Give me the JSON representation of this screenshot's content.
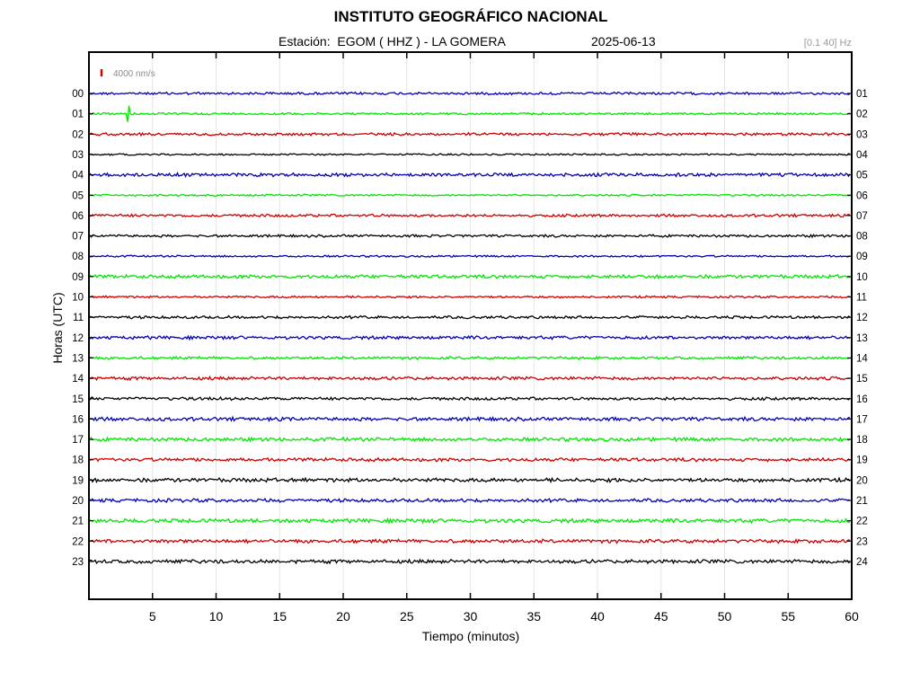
{
  "header": {
    "title": "INSTITUTO GEOGRÁFICO NACIONAL",
    "station": "Estación:  EGOM ( HHZ ) - LA GOMERA",
    "date": "2025-06-13",
    "filter": "[0.1 40] Hz"
  },
  "chart_data": {
    "type": "line",
    "title": "INSTITUTO GEOGRÁFICO NACIONAL",
    "xlabel": "Tiempo (minutos)",
    "ylabel": "Horas (UTC)",
    "xlim": [
      0,
      60
    ],
    "x_ticks": [
      "5",
      "10",
      "15",
      "20",
      "25",
      "30",
      "35",
      "40",
      "45",
      "50",
      "55",
      "60"
    ],
    "y_ticks_left": [
      "00",
      "01",
      "02",
      "03",
      "04",
      "05",
      "06",
      "07",
      "08",
      "09",
      "10",
      "11",
      "12",
      "13",
      "14",
      "15",
      "16",
      "17",
      "18",
      "19",
      "20",
      "21",
      "22",
      "23"
    ],
    "y_ticks_right": [
      "01",
      "02",
      "03",
      "04",
      "05",
      "06",
      "07",
      "08",
      "09",
      "10",
      "11",
      "12",
      "13",
      "14",
      "15",
      "16",
      "17",
      "18",
      "19",
      "20",
      "21",
      "22",
      "23",
      "24"
    ],
    "scale_label": "4000 nm/s",
    "grid": true,
    "trace_colors": [
      "#0000b4",
      "#00e600",
      "#cc0000",
      "#000000"
    ],
    "series": [
      {
        "hour": "00",
        "color": "#0000b4",
        "amplitude": 1.2
      },
      {
        "hour": "01",
        "color": "#00e600",
        "amplitude": 1.0,
        "event_minute": 3.1,
        "event_amplitude": 9
      },
      {
        "hour": "02",
        "color": "#cc0000",
        "amplitude": 1.3
      },
      {
        "hour": "03",
        "color": "#000000",
        "amplitude": 0.8
      },
      {
        "hour": "04",
        "color": "#0000b4",
        "amplitude": 1.6
      },
      {
        "hour": "05",
        "color": "#00e600",
        "amplitude": 0.9
      },
      {
        "hour": "06",
        "color": "#cc0000",
        "amplitude": 1.3
      },
      {
        "hour": "07",
        "color": "#000000",
        "amplitude": 1.2
      },
      {
        "hour": "08",
        "color": "#0000b4",
        "amplitude": 0.9
      },
      {
        "hour": "09",
        "color": "#00e600",
        "amplitude": 1.6
      },
      {
        "hour": "10",
        "color": "#cc0000",
        "amplitude": 1.0
      },
      {
        "hour": "11",
        "color": "#000000",
        "amplitude": 1.3
      },
      {
        "hour": "12",
        "color": "#0000b4",
        "amplitude": 1.5
      },
      {
        "hour": "13",
        "color": "#00e600",
        "amplitude": 1.3
      },
      {
        "hour": "14",
        "color": "#cc0000",
        "amplitude": 1.5
      },
      {
        "hour": "15",
        "color": "#000000",
        "amplitude": 1.4
      },
      {
        "hour": "16",
        "color": "#0000b4",
        "amplitude": 1.7
      },
      {
        "hour": "17",
        "color": "#00e600",
        "amplitude": 1.7
      },
      {
        "hour": "18",
        "color": "#cc0000",
        "amplitude": 1.6
      },
      {
        "hour": "19",
        "color": "#000000",
        "amplitude": 1.8
      },
      {
        "hour": "20",
        "color": "#0000b4",
        "amplitude": 1.6
      },
      {
        "hour": "21",
        "color": "#00e600",
        "amplitude": 1.8
      },
      {
        "hour": "22",
        "color": "#cc0000",
        "amplitude": 1.7
      },
      {
        "hour": "23",
        "color": "#000000",
        "amplitude": 1.7
      }
    ]
  }
}
